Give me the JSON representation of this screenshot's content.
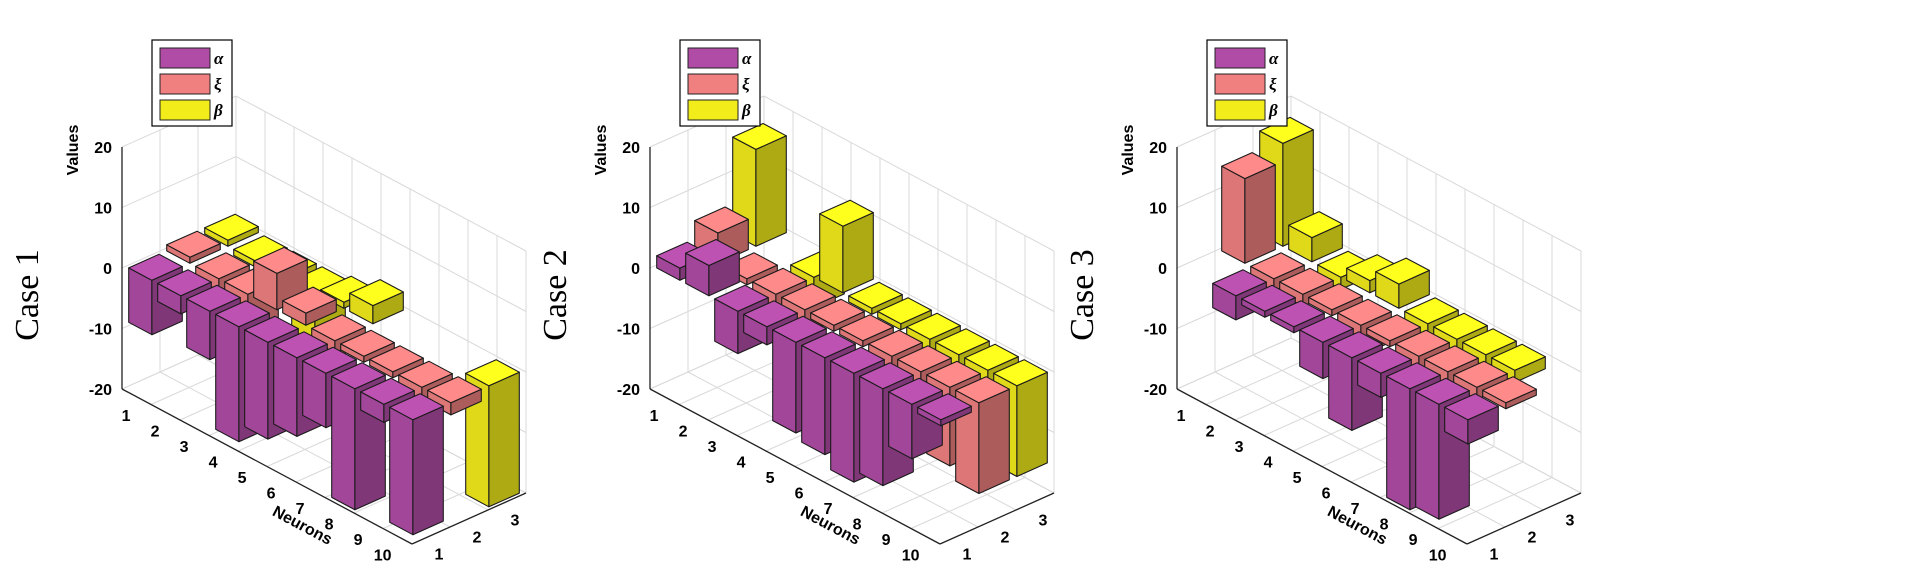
{
  "figure": {
    "series_names": [
      "α",
      "ξ",
      "β"
    ],
    "colors": {
      "alpha": "#b04ca6",
      "xi": "#f08080",
      "beta": "#f2ec1b"
    }
  },
  "chart_data": [
    {
      "type": "bar3d",
      "case_label": "Case 1",
      "xlabel": "Neurons",
      "ylabel": "",
      "zlabel": "Values",
      "xticks": [
        "1",
        "2",
        "3",
        "4",
        "5",
        "6",
        "7",
        "8",
        "9",
        "10"
      ],
      "yticks": [
        "1",
        "2",
        "3"
      ],
      "zticks": [
        "20",
        "10",
        "0",
        "-10",
        "-20"
      ],
      "zlim": [
        -20,
        20
      ],
      "legend": [
        "α",
        "ξ",
        "β"
      ],
      "series": [
        {
          "name": "α",
          "values": [
            -9,
            -3,
            -8,
            -19,
            -16,
            -13,
            -9,
            -20,
            -3,
            -19
          ]
        },
        {
          "name": "ξ",
          "values": [
            1,
            -2,
            -18,
            6,
            2,
            -2,
            -1,
            -1,
            -3,
            -2
          ]
        },
        {
          "name": "β",
          "values": [
            1,
            -1,
            -4,
            -18,
            1,
            3,
            0,
            0,
            0,
            -20
          ]
        }
      ]
    },
    {
      "type": "bar3d",
      "case_label": "Case 2",
      "xlabel": "Neurons",
      "ylabel": "",
      "zlabel": "Values",
      "xticks": [
        "1",
        "2",
        "3",
        "4",
        "5",
        "6",
        "7",
        "8",
        "9",
        "10"
      ],
      "yticks": [
        "1",
        "2",
        "3"
      ],
      "zticks": [
        "20",
        "10",
        "0",
        "-10",
        "-20"
      ],
      "zlim": [
        -20,
        20
      ],
      "legend": [
        "α",
        "ξ",
        "β"
      ],
      "series": [
        {
          "name": "α",
          "values": [
            2,
            5,
            -7,
            -3,
            -15,
            -16,
            -18,
            -16,
            -9,
            -1
          ]
        },
        {
          "name": "ξ",
          "values": [
            5,
            -1,
            -6,
            -4,
            -1,
            -1,
            -5,
            -10,
            -13,
            -15
          ]
        },
        {
          "name": "β",
          "values": [
            16,
            0,
            -5,
            11,
            -1,
            -1,
            -2,
            -3,
            -13,
            -15
          ]
        }
      ]
    },
    {
      "type": "bar3d",
      "case_label": "Case 3",
      "xlabel": "Neurons",
      "ylabel": "",
      "zlabel": "Values",
      "xticks": [
        "1",
        "2",
        "3",
        "4",
        "5",
        "6",
        "7",
        "8",
        "9",
        "10"
      ],
      "yticks": [
        "1",
        "2",
        "3"
      ],
      "zticks": [
        "20",
        "10",
        "0",
        "-10",
        "-20"
      ],
      "zlim": [
        -20,
        20
      ],
      "legend": [
        "α",
        "ξ",
        "β"
      ],
      "series": [
        {
          "name": "α",
          "values": [
            0,
            -4,
            -1,
            -1,
            -6,
            -12,
            -4,
            -20,
            -19,
            -4
          ]
        },
        {
          "name": "ξ",
          "values": [
            14,
            -2,
            -2,
            -1,
            -5,
            -1,
            -8,
            -6,
            -2,
            -1
          ]
        },
        {
          "name": "β",
          "values": [
            17,
            4,
            -2,
            2,
            4,
            -4,
            -3,
            -2,
            -2,
            0
          ]
        }
      ]
    }
  ]
}
